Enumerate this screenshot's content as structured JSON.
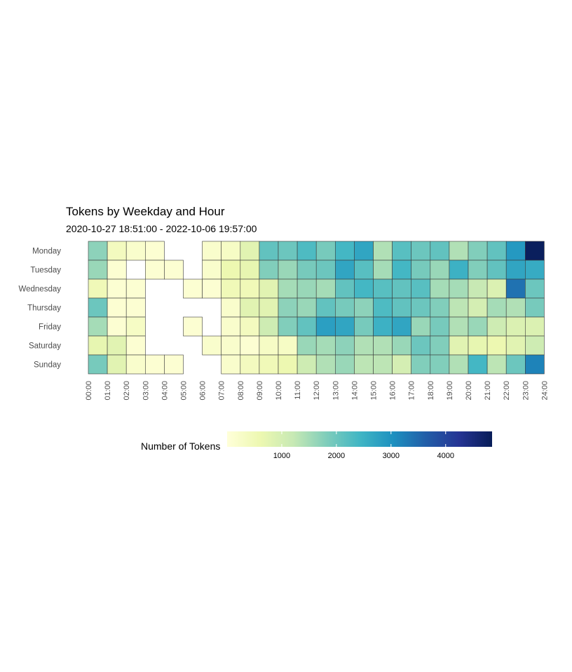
{
  "chart_data": {
    "type": "heatmap",
    "title": "Tokens by Weekday and Hour",
    "subtitle": "2020-10-27 18:51:00  -  2022-10-06 19:57:00",
    "rows": [
      "Monday",
      "Tuesday",
      "Wednesday",
      "Thursday",
      "Friday",
      "Saturday",
      "Sunday"
    ],
    "x_tick_labels": [
      "00:00",
      "01:00",
      "02:00",
      "03:00",
      "04:00",
      "05:00",
      "06:00",
      "07:00",
      "08:00",
      "09:00",
      "10:00",
      "11:00",
      "12:00",
      "13:00",
      "14:00",
      "15:00",
      "16:00",
      "17:00",
      "18:00",
      "19:00",
      "20:00",
      "21:00",
      "22:00",
      "23:00",
      "24:00"
    ],
    "values": [
      [
        1700,
        400,
        200,
        100,
        null,
        null,
        200,
        300,
        800,
        2100,
        2000,
        2300,
        1900,
        2400,
        2700,
        1400,
        2200,
        2000,
        2100,
        1400,
        1800,
        2100,
        2900,
        4800
      ],
      [
        1600,
        100,
        null,
        100,
        100,
        null,
        200,
        600,
        700,
        1800,
        1600,
        1900,
        2000,
        2700,
        2200,
        1500,
        2400,
        1900,
        1600,
        2500,
        1800,
        2100,
        2700,
        2600
      ],
      [
        500,
        100,
        100,
        null,
        null,
        100,
        100,
        500,
        500,
        800,
        1500,
        1600,
        1500,
        2100,
        2400,
        2200,
        2100,
        2200,
        1500,
        1500,
        1200,
        900,
        3400,
        2000
      ],
      [
        2000,
        100,
        100,
        null,
        null,
        null,
        null,
        200,
        800,
        800,
        1700,
        1600,
        2100,
        1900,
        1700,
        2300,
        2100,
        2000,
        1800,
        1300,
        1000,
        1500,
        1400,
        1900
      ],
      [
        1500,
        100,
        300,
        null,
        null,
        100,
        null,
        200,
        400,
        1100,
        1800,
        2100,
        2800,
        2700,
        1900,
        2500,
        2700,
        1600,
        1900,
        1400,
        1600,
        1100,
        900,
        900
      ],
      [
        700,
        800,
        100,
        null,
        null,
        null,
        200,
        200,
        100,
        300,
        300,
        1600,
        1500,
        1700,
        1400,
        1400,
        1600,
        2000,
        1800,
        800,
        700,
        600,
        800,
        1100
      ],
      [
        1900,
        800,
        200,
        100,
        100,
        null,
        null,
        200,
        400,
        500,
        600,
        1100,
        1400,
        1600,
        1300,
        1300,
        1000,
        1800,
        1800,
        1400,
        2400,
        1300,
        2000,
        3200
      ]
    ],
    "legend": {
      "title": "Number of Tokens",
      "placement": "bottom",
      "ticks": [
        1000,
        2000,
        3000,
        4000
      ],
      "range": [
        0,
        4850
      ]
    },
    "colors": [
      "#ffffd9",
      "#edf8b1",
      "#c7e9b4",
      "#7fcdbb",
      "#41b6c4",
      "#1d91c0",
      "#225ea8",
      "#253494",
      "#081d58"
    ],
    "grid": false
  }
}
